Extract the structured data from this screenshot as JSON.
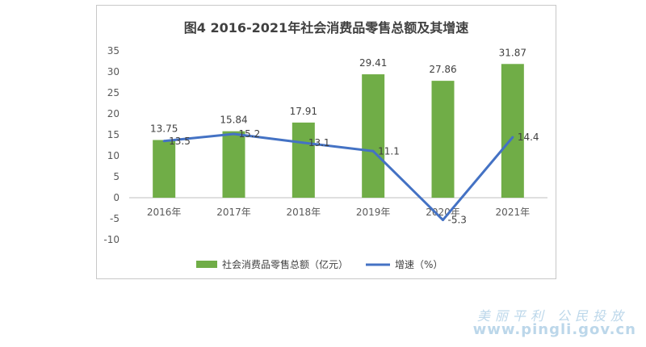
{
  "chart_data": {
    "title": "图4 2016-2021年社会消费品零售总额及其增速",
    "type": "bar+line",
    "categories": [
      "2016年",
      "2017年",
      "2018年",
      "2019年",
      "2020年",
      "2021年"
    ],
    "ylim": [
      -10,
      35
    ],
    "yticks": [
      35,
      30,
      25,
      20,
      15,
      10,
      5,
      0,
      -5,
      -10
    ],
    "series": [
      {
        "name": "社会消费品零售总额（亿元）",
        "type": "bar",
        "color": "#70ad47",
        "values": [
          13.75,
          15.84,
          17.91,
          29.41,
          27.86,
          31.87
        ]
      },
      {
        "name": "增速（%）",
        "type": "line",
        "color": "#4472c4",
        "values": [
          13.5,
          15.2,
          13.1,
          11.1,
          -5.3,
          14.4
        ]
      }
    ],
    "legend_position": "bottom"
  },
  "watermark": {
    "line1": "美丽平利 公民投放",
    "line2": "www.pingli.gov.cn"
  }
}
